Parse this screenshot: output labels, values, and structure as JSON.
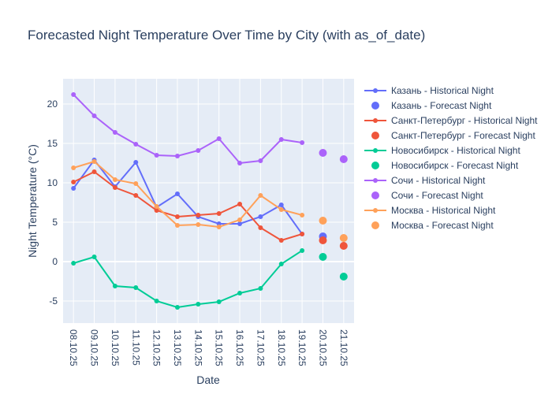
{
  "chart_data": {
    "type": "line",
    "title": "Forecasted Night Temperature Over Time by City (with as_of_date)",
    "xlabel": "Date",
    "ylabel": "Night Temperature (°C)",
    "ylim": [
      -7.8,
      23.2
    ],
    "yticks": [
      -5,
      0,
      5,
      10,
      15,
      20
    ],
    "grid": true,
    "legend": "right",
    "categories": [
      "08.10.25",
      "09.10.25",
      "10.10.25",
      "11.10.25",
      "12.10.25",
      "13.10.25",
      "14.10.25",
      "15.10.25",
      "16.10.25",
      "17.10.25",
      "18.10.25",
      "19.10.25",
      "20.10.25",
      "21.10.25"
    ],
    "series": [
      {
        "name": "Казань - Historical Night",
        "kind": "line",
        "color": "#636efa",
        "values": [
          9.3,
          12.9,
          9.5,
          12.6,
          6.9,
          8.6,
          5.7,
          4.8,
          4.8,
          5.7,
          7.2,
          3.5,
          null,
          null
        ]
      },
      {
        "name": "Казань - Forecast Night",
        "kind": "marker",
        "color": "#636efa",
        "values": [
          null,
          null,
          null,
          null,
          null,
          null,
          null,
          null,
          null,
          null,
          null,
          null,
          3.2,
          null
        ]
      },
      {
        "name": "Санкт-Петербург - Historical Night",
        "kind": "line",
        "color": "#ef553b",
        "values": [
          10.1,
          11.4,
          9.4,
          8.4,
          6.5,
          5.7,
          5.9,
          6.1,
          7.3,
          4.3,
          2.7,
          3.5,
          null,
          null
        ]
      },
      {
        "name": "Санкт-Петербург - Forecast Night",
        "kind": "marker",
        "color": "#ef553b",
        "values": [
          null,
          null,
          null,
          null,
          null,
          null,
          null,
          null,
          null,
          null,
          null,
          null,
          2.7,
          2.0
        ]
      },
      {
        "name": "Новосибирск - Historical Night",
        "kind": "line",
        "color": "#00cc96",
        "values": [
          -0.2,
          0.6,
          -3.1,
          -3.3,
          -5.0,
          -5.8,
          -5.4,
          -5.1,
          -4.0,
          -3.4,
          -0.3,
          1.4,
          null,
          null
        ]
      },
      {
        "name": "Новосибирск - Forecast Night",
        "kind": "marker",
        "color": "#00cc96",
        "values": [
          null,
          null,
          null,
          null,
          null,
          null,
          null,
          null,
          null,
          null,
          null,
          null,
          0.6,
          -1.9
        ]
      },
      {
        "name": "Сочи - Historical Night",
        "kind": "line",
        "color": "#ab63fa",
        "values": [
          21.2,
          18.5,
          16.4,
          14.9,
          13.5,
          13.4,
          14.1,
          15.6,
          12.5,
          12.8,
          15.5,
          15.1,
          null,
          null
        ]
      },
      {
        "name": "Сочи - Forecast Night",
        "kind": "marker",
        "color": "#ab63fa",
        "values": [
          null,
          null,
          null,
          null,
          null,
          null,
          null,
          null,
          null,
          null,
          null,
          null,
          13.8,
          13.0
        ]
      },
      {
        "name": "Москва - Historical Night",
        "kind": "line",
        "color": "#ffa15a",
        "values": [
          11.9,
          12.7,
          10.4,
          9.9,
          7.0,
          4.6,
          4.7,
          4.4,
          5.3,
          8.4,
          6.6,
          5.9,
          null,
          null
        ]
      },
      {
        "name": "Москва - Forecast Night",
        "kind": "marker",
        "color": "#ffa15a",
        "values": [
          null,
          null,
          null,
          null,
          null,
          null,
          null,
          null,
          null,
          null,
          null,
          null,
          5.2,
          3.0
        ]
      }
    ]
  }
}
